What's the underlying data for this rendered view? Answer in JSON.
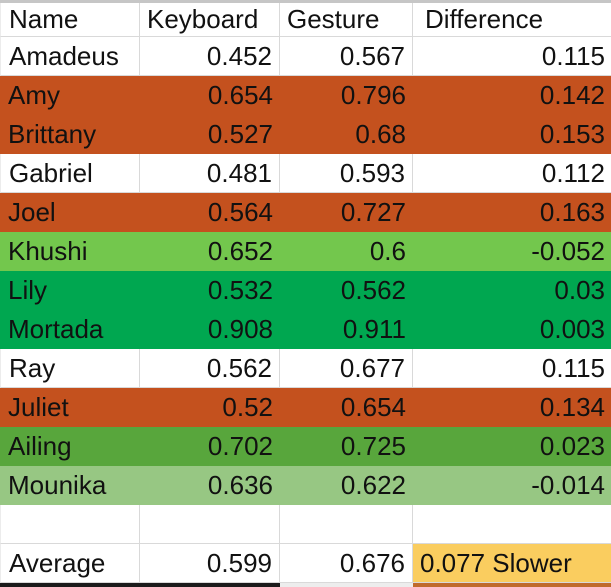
{
  "table": {
    "columns": {
      "name": "Name",
      "keyboard": "Keyboard",
      "gesture": "Gesture",
      "difference": "Difference"
    },
    "rows": [
      {
        "name": "Amadeus",
        "keyboard": "0.452",
        "gesture": "0.567",
        "difference": "0.115",
        "fill": "#FFFFFF"
      },
      {
        "name": "Amy",
        "keyboard": "0.654",
        "gesture": "0.796",
        "difference": "0.142",
        "fill": "#C4511E"
      },
      {
        "name": "Brittany",
        "keyboard": "0.527",
        "gesture": "0.68",
        "difference": "0.153",
        "fill": "#C4511E"
      },
      {
        "name": "Gabriel",
        "keyboard": "0.481",
        "gesture": "0.593",
        "difference": "0.112",
        "fill": "#FFFFFF"
      },
      {
        "name": "Joel",
        "keyboard": "0.564",
        "gesture": "0.727",
        "difference": "0.163",
        "fill": "#C4511E"
      },
      {
        "name": "Khushi",
        "keyboard": "0.652",
        "gesture": "0.6",
        "difference": "-0.052",
        "fill": "#73C74D"
      },
      {
        "name": "Lily",
        "keyboard": "0.532",
        "gesture": "0.562",
        "difference": "0.03",
        "fill": "#00A750"
      },
      {
        "name": "Mortada",
        "keyboard": "0.908",
        "gesture": "0.911",
        "difference": "0.003",
        "fill": "#00A750"
      },
      {
        "name": "Ray",
        "keyboard": "0.562",
        "gesture": "0.677",
        "difference": "0.115",
        "fill": "#FFFFFF"
      },
      {
        "name": "Juliet",
        "keyboard": "0.52",
        "gesture": "0.654",
        "difference": "0.134",
        "fill": "#C4511E"
      },
      {
        "name": "Ailing",
        "keyboard": "0.702",
        "gesture": "0.725",
        "difference": "0.023",
        "fill": "#58A63C"
      },
      {
        "name": "Mounika",
        "keyboard": "0.636",
        "gesture": "0.622",
        "difference": "-0.014",
        "fill": "#97C783"
      }
    ],
    "summary": {
      "label": "Average",
      "keyboard": "0.599",
      "gesture": "0.676",
      "difference": "0.077 Slower",
      "difference_fill": "#FACD5F"
    }
  },
  "palette": {
    "slower_row": "#C4511E",
    "faster_light_green": "#73C74D",
    "faster_green": "#00A750",
    "faster_medium_green": "#58A63C",
    "faster_pale_green": "#97C783",
    "summary_highlight": "#FACD5F",
    "gridline": "#D9D9D9",
    "text": "#111111"
  }
}
